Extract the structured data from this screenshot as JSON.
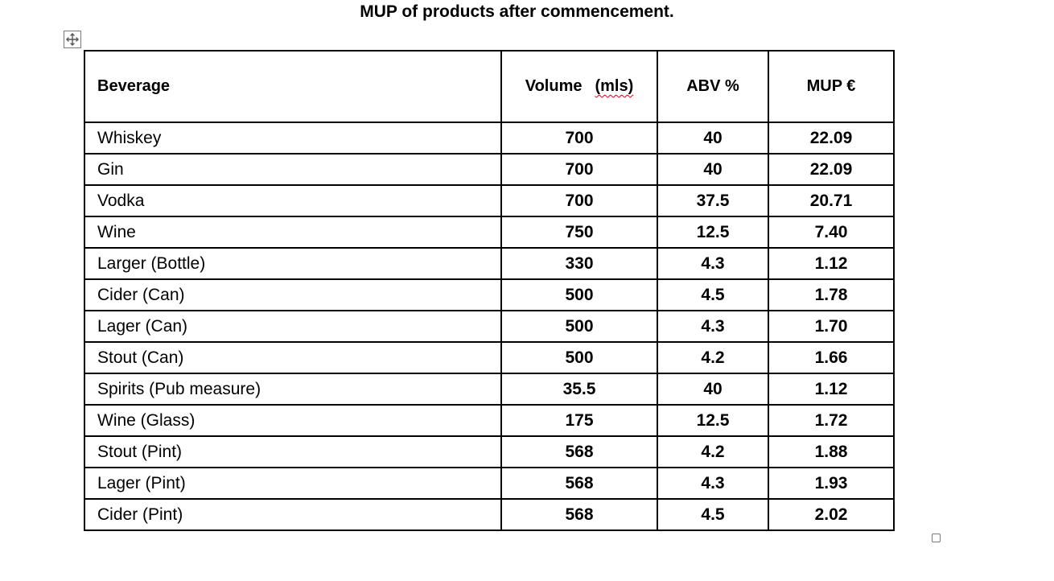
{
  "title": "MUP of products after commencement.",
  "table": {
    "headers": {
      "beverage": "Beverage",
      "volume_word": "Volume",
      "volume_unit": "(mls)",
      "abv": "ABV %",
      "mup": "MUP €"
    },
    "rows": [
      {
        "beverage": "Whiskey",
        "volume": "700",
        "abv": "40",
        "mup": "22.09"
      },
      {
        "beverage": "Gin",
        "volume": "700",
        "abv": "40",
        "mup": "22.09"
      },
      {
        "beverage": "Vodka",
        "volume": "700",
        "abv": "37.5",
        "mup": "20.71"
      },
      {
        "beverage": "Wine",
        "volume": "750",
        "abv": "12.5",
        "mup": "7.40"
      },
      {
        "beverage": "Larger (Bottle)",
        "volume": "330",
        "abv": "4.3",
        "mup": "1.12"
      },
      {
        "beverage": "Cider (Can)",
        "volume": "500",
        "abv": "4.5",
        "mup": "1.78"
      },
      {
        "beverage": "Lager (Can)",
        "volume": "500",
        "abv": "4.3",
        "mup": "1.70"
      },
      {
        "beverage": "Stout (Can)",
        "volume": "500",
        "abv": "4.2",
        "mup": "1.66"
      },
      {
        "beverage": "Spirits (Pub measure)",
        "volume": "35.5",
        "abv": "40",
        "mup": "1.12"
      },
      {
        "beverage": "Wine (Glass)",
        "volume": "175",
        "abv": "12.5",
        "mup": "1.72"
      },
      {
        "beverage": "Stout (Pint)",
        "volume": "568",
        "abv": "4.2",
        "mup": "1.88"
      },
      {
        "beverage": "Lager (Pint)",
        "volume": "568",
        "abv": "4.3",
        "mup": "1.93"
      },
      {
        "beverage": "Cider (Pint)",
        "volume": "568",
        "abv": "4.5",
        "mup": "2.02"
      }
    ]
  },
  "icons": {
    "move_handle": "move-arrows-icon",
    "resize_handle": "square-handle-icon"
  }
}
